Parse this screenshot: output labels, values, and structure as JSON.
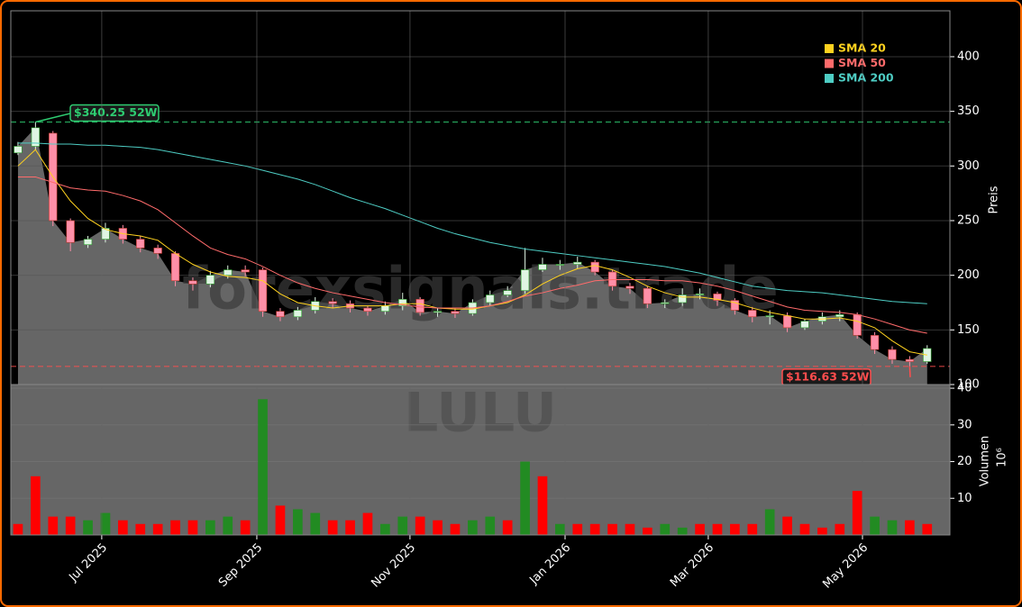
{
  "chart_data": [
    {
      "type": "candlestick",
      "categories": [
        null,
        null,
        null,
        null,
        null,
        null,
        null,
        null,
        null,
        null,
        null,
        null,
        null,
        null,
        null,
        null,
        null,
        null,
        null,
        null,
        null,
        null,
        null,
        null,
        null,
        null,
        null,
        null,
        null,
        null,
        null,
        null,
        null,
        null,
        null,
        null,
        null,
        null,
        null,
        null,
        null,
        null,
        null,
        null,
        null,
        null,
        null,
        null,
        null,
        null,
        null,
        null,
        null
      ],
      "xlim": [
        -0.41,
        53.3
      ],
      "open": [
        312,
        318,
        330,
        250,
        228,
        233,
        243,
        233,
        225,
        220,
        195,
        192,
        200,
        205,
        205,
        167,
        162,
        168,
        176,
        174,
        170,
        167,
        172,
        178,
        166,
        167,
        165,
        175,
        182,
        186,
        205,
        210,
        210,
        212,
        203,
        190,
        188,
        174,
        175,
        182,
        183,
        177,
        168,
        162,
        163,
        152,
        158,
        162,
        164,
        145,
        132,
        123,
        121
      ],
      "high": [
        322,
        340.25,
        332,
        252,
        236,
        248,
        246,
        236,
        228,
        222,
        198,
        204,
        209,
        209,
        207,
        170,
        171,
        180,
        179,
        177,
        172,
        176,
        184,
        180,
        170,
        170,
        178,
        186,
        190,
        225,
        216,
        214,
        217,
        214,
        205,
        193,
        190,
        178,
        188,
        188,
        185,
        179,
        171,
        168,
        166,
        160,
        166,
        168,
        166,
        148,
        135,
        126,
        136
      ],
      "low": [
        310,
        315,
        245,
        222,
        225,
        230,
        229,
        221,
        215,
        190,
        186,
        189,
        197,
        199,
        162,
        158,
        159,
        165,
        170,
        166,
        163,
        164,
        168,
        163,
        162,
        161,
        163,
        172,
        180,
        183,
        203,
        205,
        206,
        200,
        186,
        183,
        170,
        170,
        172,
        178,
        172,
        164,
        157,
        155,
        148,
        150,
        155,
        158,
        142,
        128,
        119,
        116.63,
        119
      ],
      "close": [
        318,
        335,
        250,
        230,
        233,
        243,
        233,
        225,
        220,
        195,
        192,
        200,
        205,
        203,
        167,
        162,
        168,
        176,
        174,
        170,
        167,
        172,
        178,
        166,
        167,
        165,
        175,
        182,
        186,
        205,
        210,
        210,
        212,
        203,
        190,
        188,
        174,
        175,
        182,
        183,
        177,
        168,
        162,
        163,
        152,
        158,
        162,
        164,
        145,
        132,
        123,
        121,
        133
      ],
      "up_color": "#dff5e3",
      "down_color": "#ff8fa8",
      "area_color": "#666666",
      "ylim": [
        100,
        442
      ],
      "yticks": [
        100,
        150,
        200,
        250,
        300,
        350,
        400
      ],
      "y_label": "Preis",
      "grid": true,
      "legend": "upper right",
      "series": [
        {
          "name": "SMA 20",
          "color": "#ffd21f",
          "values": [
            300,
            315,
            290,
            268,
            252,
            242,
            238,
            236,
            232,
            220,
            210,
            203,
            199,
            198,
            195,
            183,
            175,
            172,
            170,
            172,
            172,
            172,
            174,
            174,
            170,
            169,
            169,
            172,
            175,
            182,
            192,
            200,
            206,
            209,
            205,
            198,
            190,
            184,
            180,
            180,
            178,
            175,
            170,
            166,
            163,
            160,
            160,
            161,
            158,
            152,
            140,
            130,
            127
          ]
        },
        {
          "name": "SMA 50",
          "color": "#ff6b6b",
          "values": [
            290,
            290,
            285,
            280,
            278,
            277,
            273,
            268,
            260,
            248,
            236,
            225,
            219,
            215,
            208,
            200,
            193,
            188,
            184,
            181,
            178,
            175,
            173,
            171,
            170,
            170,
            170,
            172,
            176,
            181,
            184,
            188,
            191,
            195,
            196,
            196,
            196,
            195,
            195,
            193,
            190,
            186,
            181,
            176,
            171,
            168,
            167,
            166,
            164,
            160,
            155,
            150,
            147
          ]
        },
        {
          "name": "SMA 200",
          "color": "#4ecdc4",
          "values": [
            321,
            321,
            320,
            320,
            319,
            319,
            318,
            317,
            315,
            312,
            309,
            306,
            303,
            300,
            296,
            292,
            288,
            283,
            277,
            271,
            266,
            261,
            255,
            249,
            243,
            238,
            234,
            230,
            227,
            224,
            222,
            220,
            218,
            216,
            214,
            212,
            210,
            208,
            205,
            202,
            198,
            194,
            190,
            188,
            186,
            185,
            184,
            182,
            180,
            178,
            176,
            175,
            174
          ]
        }
      ],
      "annotations": [
        {
          "label": "$340.25 52W",
          "value": 340.25,
          "color": "#2ecc71"
        },
        {
          "label": "$116.63 52W",
          "value": 116.63,
          "color": "#ff4d4d"
        }
      ],
      "watermark": "forexsignals.trade"
    },
    {
      "type": "bar",
      "categories": [
        null,
        null,
        null,
        null,
        null,
        null,
        null,
        null,
        null,
        null,
        null,
        null,
        null,
        null,
        null,
        null,
        null,
        null,
        null,
        null,
        null,
        null,
        null,
        null,
        null,
        null,
        null,
        null,
        null,
        null,
        null,
        null,
        null,
        null,
        null,
        null,
        null,
        null,
        null,
        null,
        null,
        null,
        null,
        null,
        null,
        null,
        null,
        null,
        null,
        null,
        null,
        null,
        null
      ],
      "xlim": [
        -0.41,
        53.3
      ],
      "values": [
        3,
        16,
        5,
        5,
        4,
        6,
        4,
        3,
        3,
        4,
        4,
        4,
        5,
        4,
        37,
        8,
        7,
        6,
        4,
        4,
        6,
        3,
        5,
        5,
        4,
        3,
        4,
        5,
        4,
        20,
        16,
        3,
        3,
        3,
        3,
        3,
        2,
        3,
        2,
        3,
        3,
        3,
        3,
        7,
        5,
        3,
        2,
        3,
        12,
        5,
        4,
        4,
        3
      ],
      "colors": [
        "#ff0000",
        "#ff0000",
        "#ff0000",
        "#ff0000",
        "#228b22",
        "#228b22",
        "#ff0000",
        "#ff0000",
        "#ff0000",
        "#ff0000",
        "#ff0000",
        "#228b22",
        "#228b22",
        "#ff0000",
        "#228b22",
        "#ff0000",
        "#228b22",
        "#228b22",
        "#ff0000",
        "#ff0000",
        "#ff0000",
        "#228b22",
        "#228b22",
        "#ff0000",
        "#ff0000",
        "#ff0000",
        "#228b22",
        "#228b22",
        "#ff0000",
        "#228b22",
        "#ff0000",
        "#228b22",
        "#ff0000",
        "#ff0000",
        "#ff0000",
        "#ff0000",
        "#ff0000",
        "#228b22",
        "#228b22",
        "#ff0000",
        "#ff0000",
        "#ff0000",
        "#ff0000",
        "#228b22",
        "#ff0000",
        "#ff0000",
        "#ff0000",
        "#ff0000",
        "#ff0000",
        "#228b22",
        "#228b22",
        "#ff0000",
        "#ff0000"
      ],
      "ylim": [
        0,
        41
      ],
      "yticks": [
        10,
        20,
        30,
        40
      ],
      "y_label": "Volumen",
      "y_scale_label": "10⁶",
      "xticks": [
        {
          "value": 4.79,
          "label": "Jul 2025"
        },
        {
          "value": 13.66,
          "label": "Sep 2025"
        },
        {
          "value": 22.42,
          "label": "Nov 2025"
        },
        {
          "value": 31.29,
          "label": "Jan 2026"
        },
        {
          "value": 39.48,
          "label": "Mar 2026"
        },
        {
          "value": 48.3,
          "label": "May 2026"
        }
      ],
      "grid": true,
      "background": "#666666",
      "watermark": "LULU"
    }
  ]
}
